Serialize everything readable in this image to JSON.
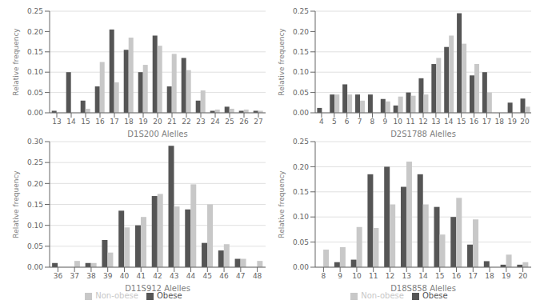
{
  "chart_data": [
    {
      "type": "bar",
      "categories": [
        "13",
        "14",
        "15",
        "16",
        "17",
        "18",
        "19",
        "20",
        "21",
        "22",
        "23",
        "24",
        "25",
        "26",
        "27"
      ],
      "series": [
        {
          "color": "#555555",
          "values": [
            0.005,
            0.1,
            0.03,
            0.065,
            0.205,
            0.155,
            0.1,
            0.19,
            0.065,
            0.135,
            0.03,
            0.005,
            0.015,
            0.005,
            0.005
          ]
        },
        {
          "color": "#c8c8c8",
          "values": [
            0.0,
            0.0,
            0.01,
            0.125,
            0.075,
            0.185,
            0.118,
            0.165,
            0.145,
            0.105,
            0.055,
            0.008,
            0.01,
            0.008,
            0.005
          ]
        }
      ],
      "x_label": "D1S200 Alelles",
      "y_label": "Relative frequency",
      "ylim": [
        0,
        0.25
      ],
      "yticks": [
        {
          "value": 0,
          "label": "0.00"
        },
        0.05,
        {
          "value": 0.1,
          "label": "0.10"
        },
        0.15,
        {
          "value": 0.2,
          "label": "0.20"
        },
        0.25
      ],
      "grid": true
    },
    {
      "type": "bar",
      "categories": [
        "4",
        "5",
        "6",
        "7",
        "8",
        "9",
        "10",
        "11",
        "12",
        "13",
        "14",
        "15",
        "16",
        "17",
        "18",
        "19",
        "20"
      ],
      "series": [
        {
          "color": "#555555",
          "values": [
            0.012,
            0.045,
            0.07,
            0.045,
            0.045,
            0.034,
            0.018,
            0.05,
            0.085,
            0.12,
            0.162,
            0.245,
            0.092,
            0.1,
            0.0,
            0.025,
            0.035
          ]
        },
        {
          "color": "#c8c8c8",
          "values": [
            0.0,
            0.045,
            0.045,
            0.03,
            0.0,
            0.028,
            0.04,
            0.042,
            0.045,
            0.135,
            0.19,
            0.17,
            0.12,
            0.05,
            0.0,
            0.0,
            0.015
          ]
        }
      ],
      "x_label": "D2S1788 Alelles",
      "y_label": "Relative frequency",
      "ylim": [
        0,
        0.25
      ],
      "yticks": [
        {
          "value": 0,
          "label": "0.00"
        },
        0.05,
        {
          "value": 0.1,
          "label": "0.10"
        },
        0.15,
        {
          "value": 0.2,
          "label": "0.20"
        },
        0.25
      ],
      "grid": true
    },
    {
      "type": "bar",
      "categories": [
        "36",
        "37",
        "38",
        "39",
        "40",
        "41",
        "42",
        "43",
        "44",
        "45",
        "46",
        "47",
        "48"
      ],
      "series": [
        {
          "name": "Obese",
          "color": "#555555",
          "values": [
            0.01,
            0.0,
            0.01,
            0.065,
            0.135,
            0.1,
            0.17,
            0.29,
            0.138,
            0.058,
            0.04,
            0.02,
            0.0
          ]
        },
        {
          "name": "Non-obese",
          "color": "#c8c8c8",
          "values": [
            0.0,
            0.015,
            0.01,
            0.035,
            0.095,
            0.12,
            0.175,
            0.145,
            0.198,
            0.15,
            0.055,
            0.02,
            0.015
          ]
        }
      ],
      "x_label": "D11S912 Alelles",
      "y_label": "Relative frequency",
      "ylim": [
        0,
        0.3
      ],
      "yticks": [
        {
          "value": 0,
          "label": "0.00"
        },
        0.05,
        {
          "value": 0.1,
          "label": "0.10"
        },
        0.15,
        {
          "value": 0.2,
          "label": "0.20"
        },
        0.25,
        {
          "value": 0.3,
          "label": "0.30"
        }
      ],
      "grid": true,
      "legend": "bottom"
    },
    {
      "type": "bar",
      "categories": [
        "8",
        "9",
        "10",
        "11",
        "12",
        "13",
        "14",
        "15",
        "16",
        "17",
        "18",
        "19",
        "20"
      ],
      "series": [
        {
          "name": "Obese",
          "color": "#555555",
          "values": [
            0.0,
            0.01,
            0.015,
            0.185,
            0.2,
            0.16,
            0.185,
            0.12,
            0.1,
            0.045,
            0.012,
            0.005,
            0.005
          ]
        },
        {
          "name": "Non-obese",
          "color": "#c8c8c8",
          "values": [
            0.035,
            0.04,
            0.08,
            0.078,
            0.125,
            0.21,
            0.125,
            0.065,
            0.138,
            0.095,
            0.0,
            0.025,
            0.01
          ]
        }
      ],
      "x_label": "D18S858 Alelles",
      "y_label": "Relative frequency",
      "ylim": [
        0,
        0.25
      ],
      "yticks": [
        {
          "value": 0,
          "label": "0.00"
        },
        0.05,
        {
          "value": 0.1,
          "label": "0.10"
        },
        0.15,
        {
          "value": 0.2,
          "label": "0.20"
        },
        0.25
      ],
      "grid": true,
      "legend": "bottom"
    }
  ]
}
